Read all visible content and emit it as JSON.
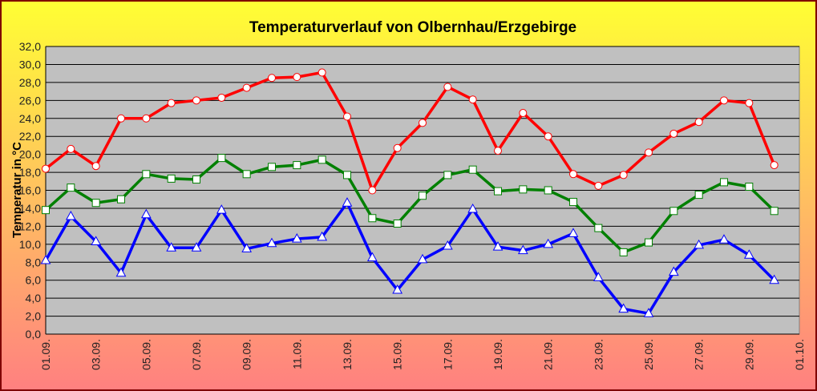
{
  "chart_data": {
    "type": "line",
    "title": "Temperaturverlauf von Olbernhau/Erzgebirge",
    "y_label": "Temperatur in °C",
    "categories": [
      "01.09.",
      null,
      "03.09.",
      null,
      "05.09.",
      null,
      "07.09.",
      null,
      "09.09.",
      null,
      "11.09.",
      null,
      "13.09.",
      null,
      "15.09.",
      null,
      "17.09.",
      null,
      "19.09.",
      null,
      "21.09.",
      null,
      "23.09.",
      null,
      "25.09.",
      null,
      "27.09.",
      null,
      "29.09.",
      null,
      "01.10."
    ],
    "series": [
      {
        "color": "#ff0000",
        "marker": "circle",
        "values": [
          18.4,
          20.6,
          18.7,
          24.0,
          24.0,
          25.7,
          26.0,
          26.3,
          27.4,
          28.5,
          28.6,
          29.1,
          24.2,
          16.0,
          20.7,
          23.5,
          27.5,
          26.1,
          20.4,
          24.6,
          22.0,
          17.8,
          16.5,
          17.7,
          20.2,
          22.3,
          23.6,
          26.0,
          25.7,
          18.8,
          null
        ]
      },
      {
        "color": "#008000",
        "marker": "square",
        "values": [
          13.8,
          16.3,
          14.6,
          15.0,
          17.8,
          17.3,
          17.2,
          19.6,
          17.8,
          18.6,
          18.8,
          19.4,
          17.7,
          12.9,
          12.3,
          15.4,
          17.7,
          18.3,
          15.9,
          16.1,
          16.0,
          14.7,
          11.8,
          9.1,
          10.2,
          13.7,
          15.5,
          16.9,
          16.4,
          13.7,
          null
        ]
      },
      {
        "color": "#0000ff",
        "marker": "triangle",
        "values": [
          8.2,
          13.1,
          10.3,
          6.8,
          13.3,
          9.6,
          9.6,
          13.8,
          9.5,
          10.1,
          10.6,
          10.8,
          14.6,
          8.5,
          4.9,
          8.3,
          9.8,
          13.9,
          9.7,
          9.3,
          10.0,
          11.2,
          6.3,
          2.8,
          2.3,
          6.9,
          9.9,
          10.5,
          8.8,
          6.0,
          null
        ]
      }
    ],
    "ylim": [
      0,
      32
    ],
    "yticks": [
      {
        "value": 0,
        "label": "0,0"
      },
      {
        "value": 2,
        "label": "2,0"
      },
      {
        "value": 4,
        "label": "4,0"
      },
      {
        "value": 6,
        "label": "6,0"
      },
      {
        "value": 8,
        "label": "8,0"
      },
      {
        "value": 10,
        "label": "10,0"
      },
      {
        "value": 12,
        "label": "12,0"
      },
      {
        "value": 14,
        "label": "14,0"
      },
      {
        "value": 16,
        "label": "16,0"
      },
      {
        "value": 18,
        "label": "18,0"
      },
      {
        "value": 20,
        "label": "20,0"
      },
      {
        "value": 22,
        "label": "22,0"
      },
      {
        "value": 24,
        "label": "24,0"
      },
      {
        "value": 26,
        "label": "26,0"
      },
      {
        "value": 28,
        "label": "28,0"
      },
      {
        "value": 30,
        "label": "30,0"
      },
      {
        "value": 32,
        "label": "32,0"
      }
    ],
    "grid": true,
    "plot_background": "#c0c0c0"
  }
}
